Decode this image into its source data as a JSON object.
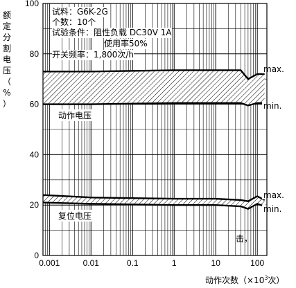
{
  "chart_data": {
    "type": "area",
    "ylabel_chars": [
      "额",
      "定",
      "分",
      "割",
      "电",
      "压",
      "（",
      "%",
      "）"
    ],
    "xlabel_prefix": "动作次数（×10",
    "xlabel_exp": "3",
    "xlabel_suffix": "次）",
    "x_scale": "log",
    "xlim": [
      0.0007,
      170
    ],
    "ylim": [
      0,
      100
    ],
    "yticks": [
      0,
      20,
      40,
      60,
      80,
      100
    ],
    "xticks": [
      {
        "value": 0.001,
        "label": "0.001"
      },
      {
        "value": 0.01,
        "label": "0.01"
      },
      {
        "value": 0.1,
        "label": "0.1"
      },
      {
        "value": 1,
        "label": "1"
      },
      {
        "value": 10,
        "label": "10"
      },
      {
        "value": 100,
        "label": "100"
      }
    ],
    "grid": true,
    "conditions": [
      "试料：G6K-2G",
      "个数：10个",
      "试验条件：阻性负载  DC30V  1A",
      "使用率50%",
      "开关频率：1,800次/h"
    ],
    "series": [
      {
        "name": "动作电压",
        "x": [
          0.0007,
          0.01,
          1,
          10,
          40,
          60,
          100,
          150
        ],
        "max": [
          73,
          73,
          73.5,
          73.5,
          73.5,
          70,
          72,
          72
        ],
        "min": [
          60,
          60,
          60.5,
          60.5,
          60.5,
          59.5,
          60.5,
          60.5
        ],
        "max_label": "max.",
        "min_label": "min."
      },
      {
        "name": "复位电压",
        "x": [
          0.0007,
          0.01,
          1,
          10,
          40,
          60,
          100,
          150
        ],
        "max": [
          24,
          23,
          22.5,
          22.5,
          22,
          21.5,
          23.5,
          22
        ],
        "min": [
          21,
          20.5,
          20,
          20,
          19.5,
          18.5,
          20.5,
          19.5
        ],
        "max_label": "max.",
        "min_label": "min."
      }
    ]
  },
  "edge_text": "击，"
}
